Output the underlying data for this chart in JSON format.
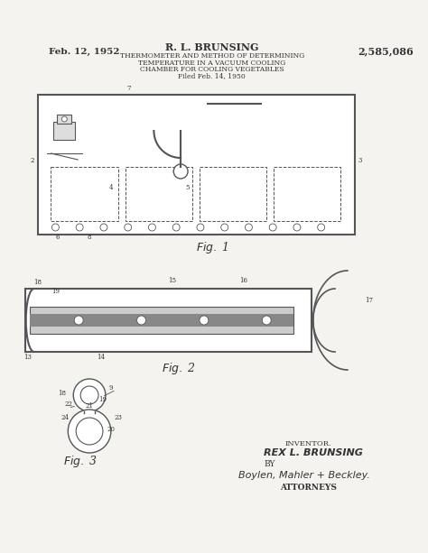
{
  "bg_color": "#f0eeea",
  "line_color": "#555555",
  "dark_line": "#333333",
  "page_bg": "#f5f3ef",
  "header": {
    "date": "Feb. 12, 1952",
    "inventor": "R. L. BRUNSING",
    "title_lines": [
      "THERMOMETER AND METHOD OF DETERMINING",
      "TEMPERATURE IN A VACUUM COOLING",
      "CHAMBER FOR COOLING VEGETABLES",
      "Filed Feb. 14, 1950"
    ],
    "patent_num": "2,585,086"
  },
  "footer": {
    "inventor_label": "INVENTOR.",
    "inventor_name": "REX L. BRUNSING",
    "by": "BY",
    "attorneys_name": "Boylen, Mahler + Beckley.",
    "attorneys_label": "ATTORNEYS"
  }
}
